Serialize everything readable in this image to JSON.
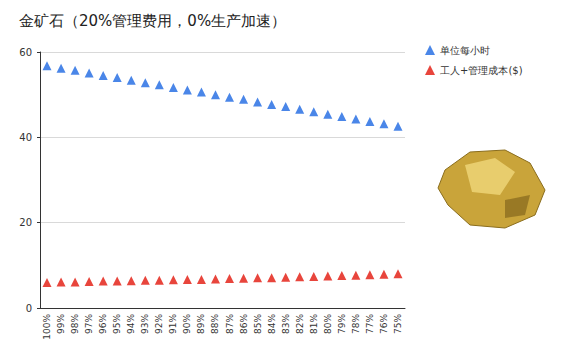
{
  "chart_data": {
    "type": "scatter",
    "title": "金矿石（20%管理费用，0%生产加速）",
    "categories": [
      "100%",
      "99%",
      "98%",
      "97%",
      "96%",
      "95%",
      "94%",
      "93%",
      "92%",
      "91%",
      "90%",
      "89%",
      "88%",
      "87%",
      "86%",
      "85%",
      "84%",
      "83%",
      "82%",
      "81%",
      "80%",
      "79%",
      "78%",
      "77%",
      "76%",
      "75%"
    ],
    "series": [
      {
        "name": "单位每小时",
        "color": "#4a86e8",
        "marker": "triangle",
        "values": [
          56.8,
          56.2,
          55.7,
          55.1,
          54.5,
          54.0,
          53.4,
          52.8,
          52.3,
          51.7,
          51.1,
          50.6,
          50.0,
          49.4,
          48.9,
          48.3,
          47.7,
          47.2,
          46.6,
          46.0,
          45.4,
          44.9,
          44.3,
          43.7,
          43.2,
          42.6
        ]
      },
      {
        "name": "工人+管理成本($)",
        "color": "#e8453c",
        "marker": "triangle",
        "values": [
          6.0,
          6.1,
          6.1,
          6.2,
          6.3,
          6.3,
          6.4,
          6.5,
          6.5,
          6.6,
          6.7,
          6.7,
          6.8,
          6.9,
          7.0,
          7.1,
          7.1,
          7.2,
          7.3,
          7.4,
          7.5,
          7.6,
          7.7,
          7.8,
          7.9,
          8.0
        ]
      }
    ],
    "ylim": [
      0,
      60
    ],
    "yticks": [
      0,
      20,
      40,
      60
    ],
    "grid": true,
    "legend": "top-right"
  }
}
